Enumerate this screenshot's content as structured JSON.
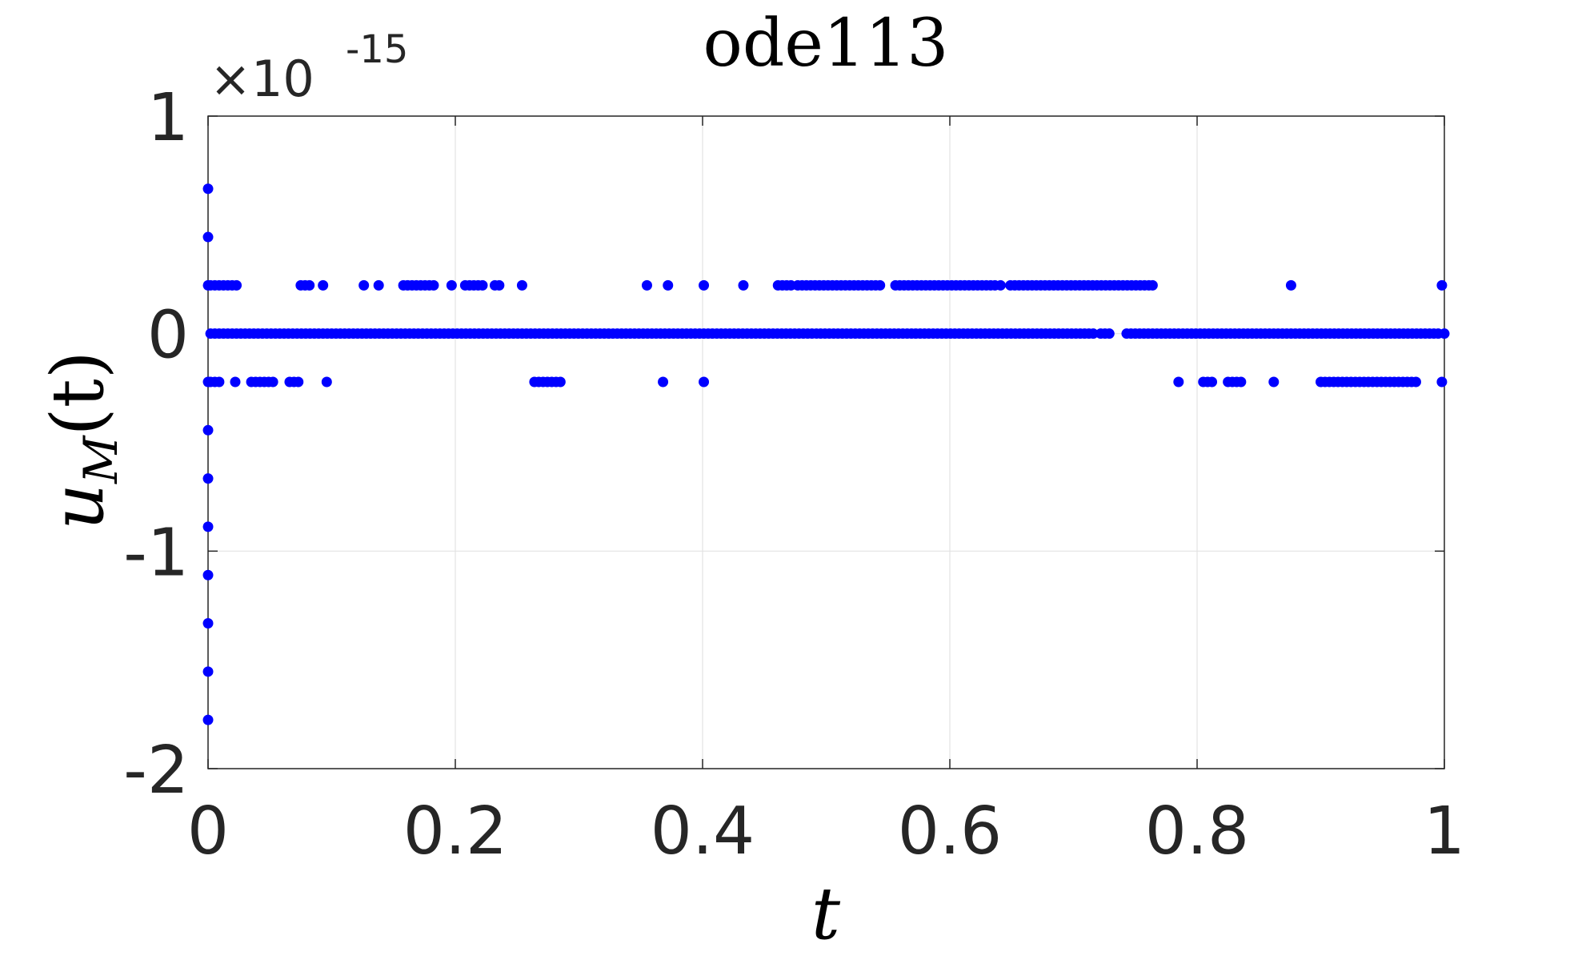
{
  "chart_data": {
    "type": "scatter",
    "title": "ode113",
    "xlabel": "t",
    "ylabel": "u_M(t)",
    "ylabel_parts": {
      "base": "u",
      "sub": "M",
      "arg": "(t)"
    },
    "y_multiplier": {
      "base": "×10",
      "exponent": "-15"
    },
    "xlim": [
      0,
      1
    ],
    "ylim": [
      -2,
      1
    ],
    "xticks": [
      0,
      0.2,
      0.4,
      0.6,
      0.8,
      1
    ],
    "xtick_labels": [
      "0",
      "0.2",
      "0.4",
      "0.6",
      "0.8",
      "1"
    ],
    "yticks": [
      -2,
      -1,
      0,
      1
    ],
    "ytick_labels": [
      "-2",
      "-1",
      "0",
      "1"
    ],
    "grid": true,
    "marker": "filled circle",
    "series": [
      {
        "color": "#0000ff",
        "early_points": [
          {
            "x": 0,
            "y": 0.666
          },
          {
            "x": 0,
            "y": 0.444
          },
          {
            "x": 0,
            "y": 0.222
          },
          {
            "x": 0,
            "y": -0.222
          },
          {
            "x": 0,
            "y": -0.444
          },
          {
            "x": 0,
            "y": -0.666
          },
          {
            "x": 0,
            "y": -0.888
          },
          {
            "x": 0,
            "y": -1.11
          },
          {
            "x": 0,
            "y": -1.332
          },
          {
            "x": 0,
            "y": -1.554
          },
          {
            "x": 0,
            "y": -1.776
          }
        ],
        "zero_level": {
          "y": 0,
          "x_ranges": [
            [
              0.002,
              0.718
            ],
            [
              0.722,
              0.729
            ],
            [
              0.743,
              0.998
            ]
          ],
          "step": 0.0035
        },
        "upper_level": {
          "y": 0.222,
          "x_ranges": [
            [
              0.002,
              0.026
            ],
            [
              0.075,
              0.083
            ],
            [
              0.093,
              0.093
            ],
            [
              0.126,
              0.126
            ],
            [
              0.138,
              0.138
            ],
            [
              0.158,
              0.184
            ],
            [
              0.197,
              0.197
            ],
            [
              0.208,
              0.222
            ],
            [
              0.232,
              0.238
            ],
            [
              0.254,
              0.254
            ],
            [
              0.355,
              0.355
            ],
            [
              0.372,
              0.372
            ],
            [
              0.401,
              0.401
            ],
            [
              0.433,
              0.433
            ],
            [
              0.461,
              0.472
            ],
            [
              0.477,
              0.545
            ],
            [
              0.556,
              0.637
            ],
            [
              0.641,
              0.643
            ],
            [
              0.649,
              0.762
            ],
            [
              0.764,
              0.764
            ]
          ],
          "step": 0.0035
        },
        "lower_level": {
          "y": -0.222,
          "x_ranges": [
            [
              0.002,
              0.012
            ],
            [
              0.022,
              0.022
            ],
            [
              0.035,
              0.053
            ],
            [
              0.066,
              0.074
            ],
            [
              0.096,
              0.096
            ],
            [
              0.264,
              0.287
            ],
            [
              0.368,
              0.368
            ],
            [
              0.401,
              0.401
            ],
            [
              0.785,
              0.785
            ],
            [
              0.805,
              0.815
            ],
            [
              0.825,
              0.838
            ],
            [
              0.862,
              0.862
            ],
            [
              0.9,
              0.977
            ],
            [
              0.998,
              0.998
            ]
          ],
          "step": 0.0035
        },
        "extra_points": [
          {
            "x": 0.876,
            "y": 0.222
          },
          {
            "x": 0.998,
            "y": 0.222
          },
          {
            "x": 1.0,
            "y": 0
          }
        ]
      }
    ]
  }
}
